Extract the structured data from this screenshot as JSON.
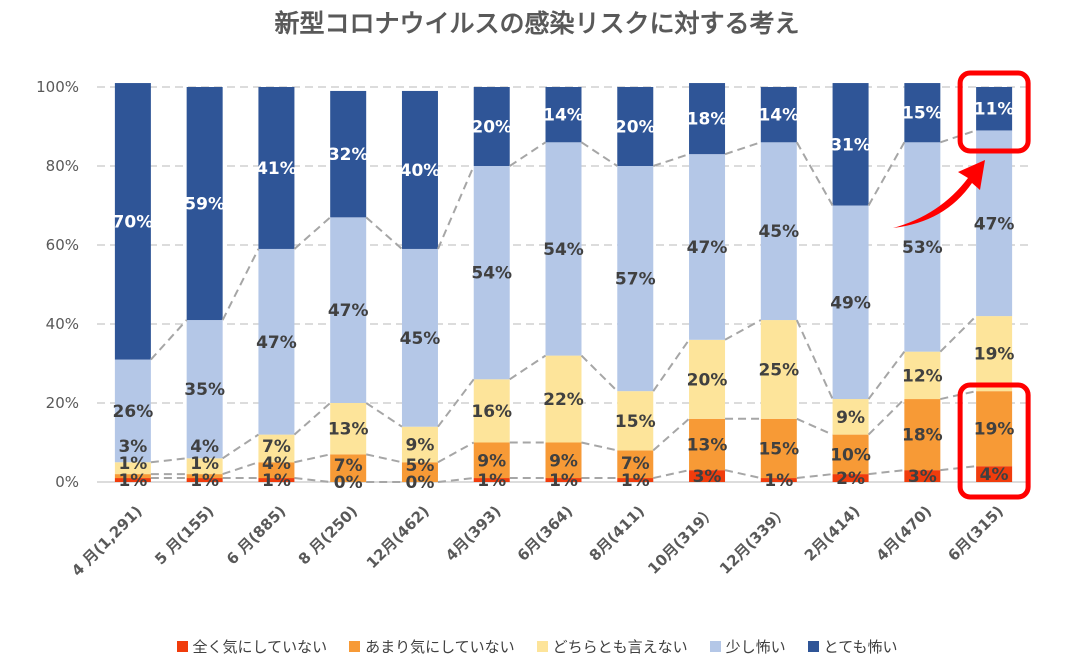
{
  "chart_data": {
    "type": "stacked-bar-percent",
    "title": "新型コロナウイルスの感染リスクに対する考え",
    "categories": [
      "4 月(1,291)",
      "5 月(155)",
      "6 月(885)",
      "8 月(250)",
      "12月(462)",
      "4月(393)",
      "6月(364)",
      "8月(411)",
      "10月(319）",
      "12月(339）",
      "2月(414)",
      "4月(470)",
      "6月(315)"
    ],
    "ylim": [
      0,
      100
    ],
    "yticks": [
      "0%",
      "20%",
      "40%",
      "60%",
      "80%",
      "100%"
    ],
    "grid": true,
    "legend_position": "bottom",
    "series": [
      {
        "name": "全く気にしていない",
        "color": "#f03c0c",
        "values": [
          1,
          1,
          1,
          0,
          0,
          1,
          1,
          1,
          3,
          1,
          2,
          3,
          4
        ]
      },
      {
        "name": "あまり気にしていない",
        "color": "#f79a36",
        "values": [
          1,
          1,
          4,
          7,
          5,
          9,
          9,
          7,
          13,
          15,
          10,
          18,
          19
        ]
      },
      {
        "name": "どちらとも言えない",
        "color": "#fde49a",
        "values": [
          3,
          4,
          7,
          13,
          9,
          16,
          22,
          15,
          20,
          25,
          9,
          12,
          19
        ]
      },
      {
        "name": "少し怖い",
        "color": "#b4c7e7",
        "values": [
          26,
          35,
          47,
          47,
          45,
          54,
          54,
          57,
          47,
          45,
          49,
          53,
          47
        ]
      },
      {
        "name": "とても怖い",
        "color": "#2f5597",
        "values": [
          70,
          59,
          41,
          32,
          40,
          20,
          14,
          20,
          18,
          14,
          31,
          15,
          11
        ]
      }
    ],
    "highlight_color": "#ff0000"
  }
}
